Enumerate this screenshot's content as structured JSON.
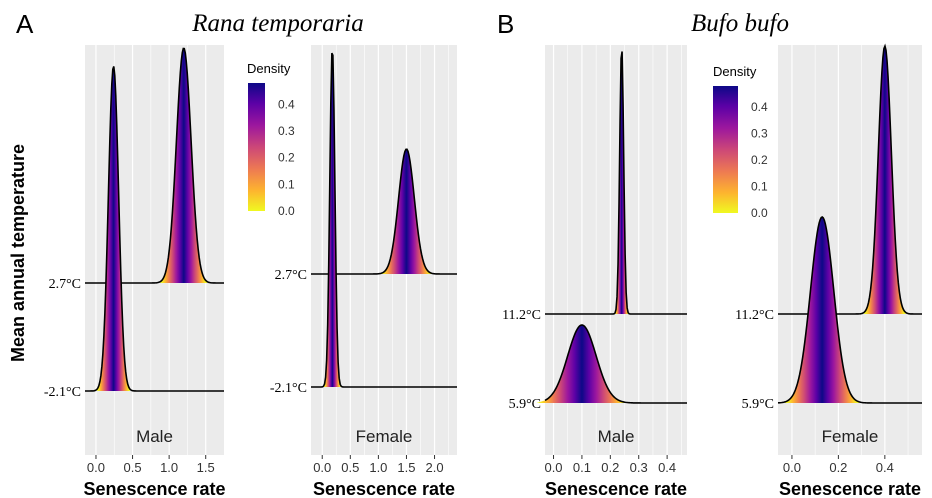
{
  "figure": {
    "panel_A_letter": "A",
    "panel_B_letter": "B",
    "species_A": "Rana temporaria",
    "species_B": "Bufo bufo",
    "y_axis_label": "Mean annual temperature",
    "x_axis_label": "Senescence rate"
  },
  "colors": {
    "panel_background": "#ebebeb",
    "grid": "#ffffff",
    "density_scale": [
      "#0d0887",
      "#5c01a6",
      "#9c179e",
      "#cc4778",
      "#ed7953",
      "#fdb42f",
      "#f0f921"
    ],
    "outline": "#000000"
  },
  "legend": {
    "title": "Density",
    "ticks": [
      "0.4",
      "0.3",
      "0.2",
      "0.1",
      "0.0"
    ],
    "range": [
      0,
      0.48
    ]
  },
  "chart_data": [
    {
      "type": "ridgeline density",
      "species": "Rana temporaria",
      "sex": "Male",
      "xlabel": "Senescence rate",
      "ylabel": "Mean annual temperature",
      "x_ticks": [
        "0.0",
        "0.5",
        "1.0",
        "1.5"
      ],
      "xlim": [
        -0.15,
        1.75
      ],
      "ridges": [
        {
          "label": "2.7°C",
          "peak": 1.2,
          "sd": 0.1
        },
        {
          "label": "-2.1°C",
          "peak": 0.24,
          "sd": 0.07
        }
      ]
    },
    {
      "type": "ridgeline density",
      "species": "Rana temporaria",
      "sex": "Female",
      "xlabel": "Senescence rate",
      "ylabel": "Mean annual temperature",
      "x_ticks": [
        "0.0",
        "0.5",
        "1.0",
        "1.5",
        "2.0"
      ],
      "xlim": [
        -0.2,
        2.4
      ],
      "ridges": [
        {
          "label": "2.7°C",
          "peak": 1.5,
          "sd": 0.14
        },
        {
          "label": "-2.1°C",
          "peak": 0.18,
          "sd": 0.045
        }
      ]
    },
    {
      "type": "ridgeline density",
      "species": "Bufo bufo",
      "sex": "Male",
      "xlabel": "Senescence rate",
      "ylabel": "Mean annual temperature",
      "x_ticks": [
        "0.0",
        "0.1",
        "0.2",
        "0.3",
        "0.4"
      ],
      "xlim": [
        -0.03,
        0.47
      ],
      "ridges": [
        {
          "label": "11.2°C",
          "peak": 0.24,
          "sd": 0.007
        },
        {
          "label": "5.9°C",
          "peak": 0.1,
          "sd": 0.05
        }
      ]
    },
    {
      "type": "ridgeline density",
      "species": "Bufo bufo",
      "sex": "Female",
      "xlabel": "Senescence rate",
      "ylabel": "Mean annual temperature",
      "x_ticks": [
        "0.0",
        "0.2",
        "0.4"
      ],
      "xlim": [
        -0.06,
        0.56
      ],
      "ridges": [
        {
          "label": "11.2°C",
          "peak": 0.4,
          "sd": 0.028
        },
        {
          "label": "5.9°C",
          "peak": 0.13,
          "sd": 0.05
        }
      ]
    }
  ]
}
